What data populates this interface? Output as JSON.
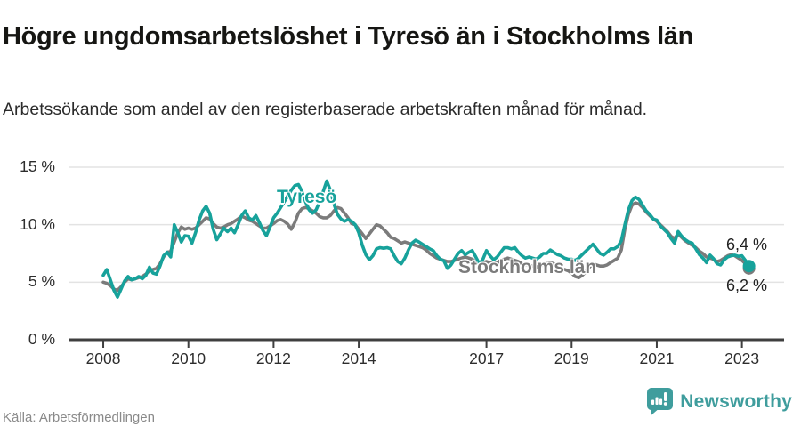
{
  "footer": {
    "brand": "Newsworthy"
  },
  "colors": {
    "tyreso": "#17a29b",
    "stockholm": "#7b7b7b",
    "grid": "#e3e3e3",
    "axis": "#3f3f3f",
    "brand_teal": "#3f9d9d"
  },
  "chart_data": {
    "type": "line",
    "title": "Högre ungdomsarbetslöshet i Tyresö än i Stockholms län",
    "subtitle": "Arbetssökande som andel av den registerbaserade arbetskraften månad för månad.",
    "source": "Källa: Arbetsförmedlingen",
    "grid": "horizontal",
    "legend_position": "inline-labels",
    "x_start_year": 2008,
    "x_step_months": 1,
    "xlim": [
      2007.205,
      2023.99
    ],
    "ylim": [
      0,
      15
    ],
    "yticks": [
      {
        "value": 0,
        "label": "0 %"
      },
      {
        "value": 5,
        "label": "5 %"
      },
      {
        "value": 10,
        "label": "10 %"
      },
      {
        "value": 15,
        "label": "15 %"
      }
    ],
    "xticks": [
      {
        "value": 2008,
        "label": "2008"
      },
      {
        "value": 2010,
        "label": "2010"
      },
      {
        "value": 2012,
        "label": "2012"
      },
      {
        "value": 2014,
        "label": "2014"
      },
      {
        "value": 2017,
        "label": "2017"
      },
      {
        "value": 2019,
        "label": "2019"
      },
      {
        "value": 2021,
        "label": "2021"
      },
      {
        "value": 2023,
        "label": "2023"
      }
    ],
    "series": [
      {
        "name": "Stockholms län",
        "color": "#7b7b7b",
        "end_label": "6,2 %",
        "end_value": 6.2,
        "values": [
          5.0,
          4.9,
          4.7,
          4.4,
          4.3,
          4.6,
          5.0,
          5.3,
          5.2,
          5.3,
          5.4,
          5.5,
          5.7,
          6.0,
          6.1,
          6.2,
          6.6,
          7.2,
          7.6,
          7.7,
          8.5,
          9.3,
          9.8,
          9.6,
          9.7,
          9.6,
          9.7,
          10.0,
          10.3,
          10.6,
          10.5,
          10.1,
          9.8,
          9.7,
          9.8,
          10.0,
          10.1,
          10.3,
          10.5,
          10.75,
          10.6,
          10.4,
          10.3,
          10.1,
          9.9,
          9.7,
          9.7,
          9.9,
          10.1,
          10.35,
          10.45,
          10.3,
          10.05,
          9.6,
          10.2,
          11.0,
          11.4,
          11.5,
          11.4,
          11.2,
          11.0,
          10.7,
          10.6,
          10.6,
          10.8,
          11.2,
          11.5,
          11.4,
          11.0,
          10.6,
          10.1,
          10.0,
          9.6,
          9.2,
          8.8,
          9.2,
          9.6,
          10.0,
          9.9,
          9.6,
          9.3,
          8.9,
          8.8,
          8.6,
          8.4,
          8.5,
          8.4,
          8.3,
          8.2,
          8.1,
          8.0,
          7.8,
          7.5,
          7.3,
          7.1,
          7.0,
          6.9,
          6.8,
          6.8,
          6.9,
          7.0,
          7.1,
          7.2,
          7.1,
          7.0,
          6.8,
          6.7,
          6.7,
          6.8,
          6.7,
          6.6,
          6.7,
          6.9,
          7.0,
          7.1,
          7.0,
          6.9,
          6.8,
          6.6,
          6.5,
          6.5,
          6.4,
          6.3,
          6.4,
          6.5,
          6.6,
          6.7,
          6.6,
          6.4,
          6.2,
          6.1,
          6.0,
          5.8,
          5.5,
          5.4,
          5.6,
          5.9,
          6.3,
          6.6,
          6.5,
          6.4,
          6.4,
          6.5,
          6.7,
          6.9,
          7.1,
          7.8,
          9.6,
          10.9,
          11.7,
          11.9,
          11.8,
          11.5,
          11.1,
          10.8,
          10.5,
          10.3,
          10.0,
          9.7,
          9.4,
          9.0,
          8.8,
          9.2,
          8.9,
          8.6,
          8.4,
          8.2,
          8.0,
          7.7,
          7.5,
          7.2,
          7.1,
          7.0,
          6.8,
          6.9,
          7.1,
          7.3,
          7.4,
          7.3,
          7.1,
          6.9,
          6.6,
          6.2
        ]
      },
      {
        "name": "Tyresö",
        "color": "#17a29b",
        "end_label": "6,4 %",
        "end_value": 6.4,
        "values": [
          5.6,
          6.1,
          5.2,
          4.3,
          3.7,
          4.4,
          5.1,
          5.5,
          5.2,
          5.3,
          5.5,
          5.3,
          5.6,
          6.3,
          5.8,
          5.7,
          6.4,
          7.3,
          7.6,
          7.2,
          10.0,
          9.3,
          8.5,
          9.05,
          9.0,
          8.4,
          9.3,
          10.4,
          11.2,
          11.6,
          11.0,
          9.6,
          8.7,
          9.2,
          9.7,
          9.4,
          9.7,
          9.3,
          10.0,
          10.8,
          11.2,
          10.6,
          10.4,
          10.8,
          10.2,
          9.5,
          9.05,
          9.8,
          10.6,
          11.0,
          11.5,
          12.0,
          12.5,
          13.0,
          13.4,
          13.5,
          12.9,
          12.0,
          11.3,
          11.0,
          11.3,
          12.0,
          12.9,
          13.8,
          13.0,
          11.8,
          10.9,
          10.5,
          10.3,
          10.45,
          10.3,
          10.0,
          9.3,
          8.2,
          7.4,
          6.95,
          7.3,
          7.9,
          8.0,
          7.95,
          8.0,
          7.9,
          7.3,
          6.8,
          6.6,
          7.1,
          7.8,
          8.4,
          8.65,
          8.5,
          8.3,
          8.1,
          7.9,
          7.75,
          7.3,
          7.0,
          6.85,
          6.2,
          6.5,
          7.0,
          7.5,
          7.75,
          7.4,
          7.6,
          7.75,
          7.2,
          6.6,
          7.0,
          7.75,
          7.3,
          6.95,
          7.2,
          7.6,
          8.0,
          8.0,
          7.9,
          8.0,
          7.6,
          7.3,
          7.1,
          7.2,
          7.1,
          7.0,
          7.2,
          7.5,
          7.5,
          7.8,
          7.6,
          7.4,
          7.3,
          7.1,
          7.0,
          7.0,
          6.9,
          7.1,
          7.4,
          7.7,
          8.0,
          8.3,
          7.9,
          7.5,
          7.35,
          7.6,
          7.9,
          7.9,
          8.1,
          8.6,
          10.0,
          11.3,
          12.1,
          12.4,
          12.2,
          11.7,
          11.2,
          10.9,
          10.5,
          10.4,
          9.9,
          9.6,
          9.3,
          8.8,
          8.4,
          9.4,
          9.0,
          8.7,
          8.5,
          8.4,
          7.9,
          7.4,
          7.1,
          6.7,
          7.35,
          7.05,
          6.6,
          6.5,
          6.95,
          7.2,
          7.3,
          7.35,
          7.25,
          7.3,
          6.9,
          6.4
        ]
      }
    ]
  }
}
